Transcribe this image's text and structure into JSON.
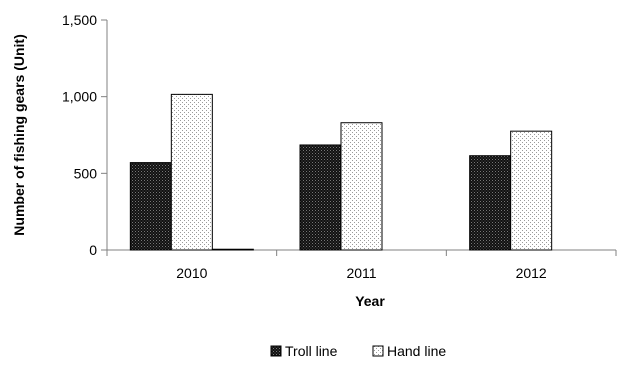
{
  "chart_data": {
    "type": "bar",
    "title": "",
    "xlabel": "Year",
    "ylabel": "Number of fishing gears (Unit)",
    "categories": [
      "2010",
      "2011",
      "2012"
    ],
    "ylim": [
      0,
      1500
    ],
    "yticks": [
      0,
      500,
      1000,
      1500
    ],
    "ytick_labels": [
      "0",
      "500",
      "1,000",
      "1,500"
    ],
    "grid": false,
    "legend_position": "bottom",
    "series": [
      {
        "name": "Troll line",
        "values": [
          570,
          685,
          615
        ],
        "pattern": "dense-dark",
        "color": "#1a1a1a"
      },
      {
        "name": "Hand line",
        "values": [
          1015,
          830,
          775
        ],
        "pattern": "light-dots",
        "color": "#f2f2f2"
      },
      {
        "name": "",
        "values": [
          5,
          0,
          0
        ],
        "pattern": "dense-dark",
        "color": "#1a1a1a"
      }
    ]
  }
}
